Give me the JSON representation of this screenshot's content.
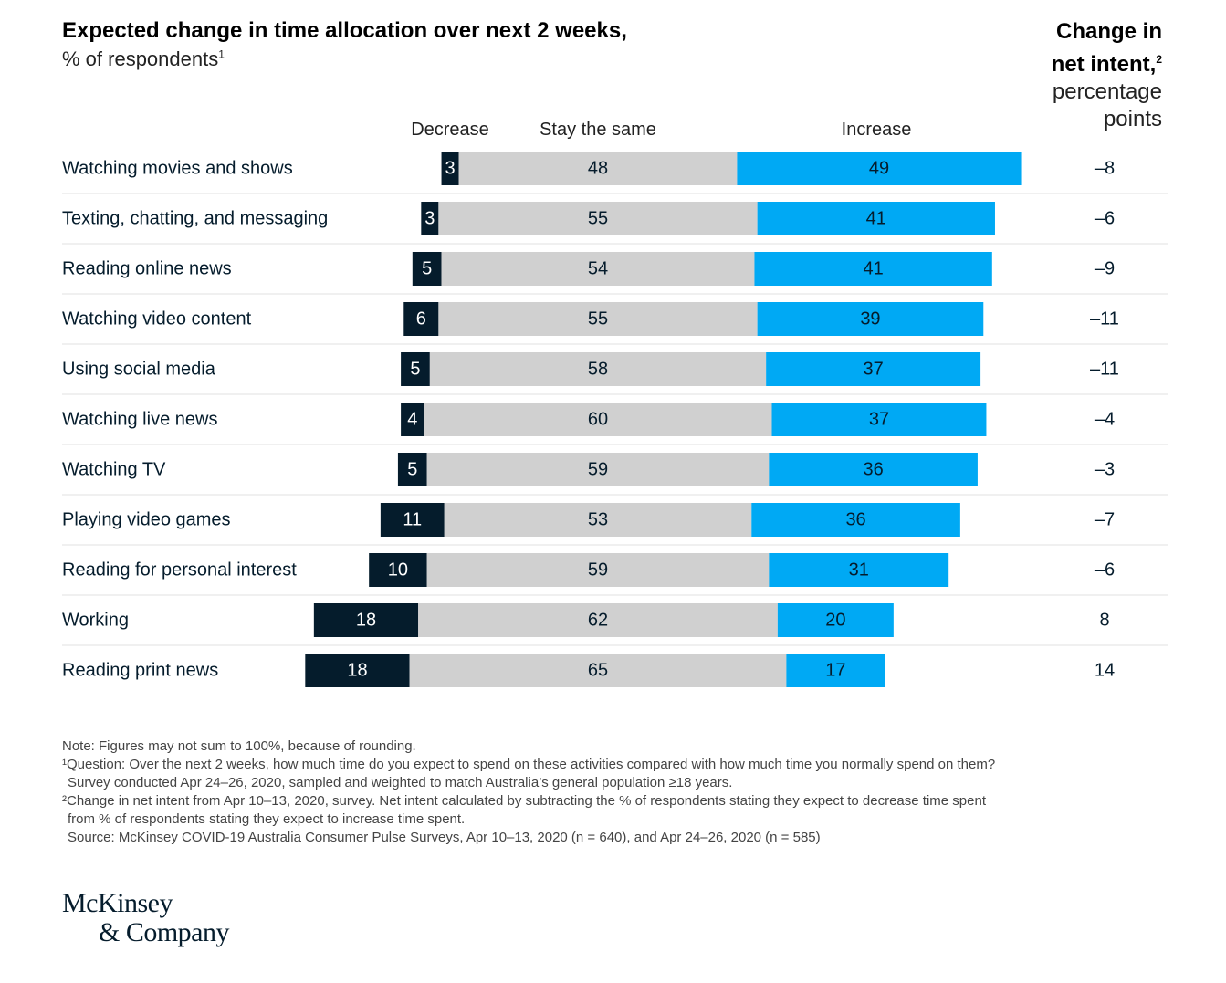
{
  "header": {
    "title": "Expected change in time allocation over next 2 weeks,",
    "subtitle": "% of respondents",
    "subtitle_sup": "1",
    "right_title_1": "Change in",
    "right_title_2": "net intent,",
    "right_title_sup": "2",
    "right_sub_1": "percentage",
    "right_sub_2": "points"
  },
  "columns": {
    "decrease": "Decrease",
    "same": "Stay the same",
    "increase": "Increase"
  },
  "colors": {
    "decrease": "#051c2c",
    "same": "#d0d0d0",
    "increase": "#00a9f4",
    "divider": "#e0e0e0"
  },
  "chart_data": {
    "type": "bar",
    "orientation": "horizontal-diverging-stacked",
    "categories": [
      "Watching movies and shows",
      "Texting, chatting, and messaging",
      "Reading online news",
      "Watching video content",
      "Using social media",
      "Watching live news",
      "Watching TV",
      "Playing video games",
      "Reading for personal interest",
      "Working",
      "Reading print news"
    ],
    "series": [
      {
        "name": "Decrease",
        "values": [
          3,
          3,
          5,
          6,
          5,
          4,
          5,
          11,
          10,
          18,
          18
        ]
      },
      {
        "name": "Stay the same",
        "values": [
          48,
          55,
          54,
          55,
          58,
          60,
          59,
          53,
          59,
          62,
          65
        ]
      },
      {
        "name": "Increase",
        "values": [
          49,
          41,
          41,
          39,
          37,
          37,
          36,
          36,
          31,
          20,
          17
        ]
      }
    ],
    "net_change": [
      "–8",
      "–6",
      "–9",
      "–11",
      "–11",
      "–4",
      "–3",
      "–7",
      "–6",
      "8",
      "14"
    ]
  },
  "notes": [
    "Note: Figures may not sum to 100%, because of rounding.",
    "¹Question: Over the next 2 weeks, how much time do you expect to spend on these activities compared with how much time you normally spend on them?",
    "Survey conducted Apr 24–26, 2020, sampled and weighted to match Australia’s general population ≥18 years.",
    "²Change in net intent from Apr 10–13, 2020, survey. Net intent calculated by subtracting the % of respondents stating they expect to decrease time spent",
    "from % of respondents stating they expect to increase time spent.",
    "Source: McKinsey COVID-19 Australia Consumer Pulse Surveys, Apr 10–13, 2020 (n = 640), and Apr 24–26, 2020 (n = 585)"
  ],
  "logo": {
    "line1": "McKinsey",
    "line2": "& Company"
  }
}
